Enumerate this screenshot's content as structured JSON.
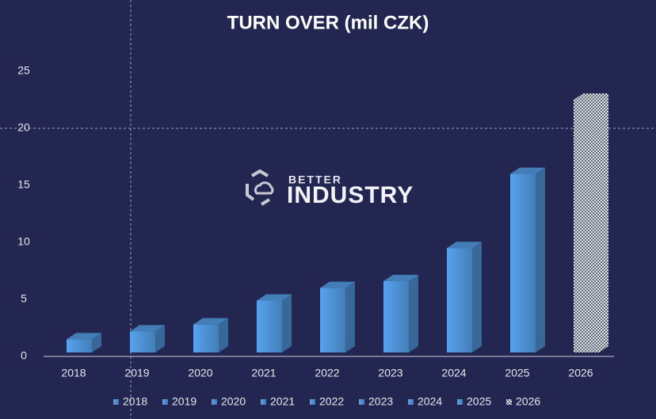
{
  "chart_data": {
    "type": "bar3d",
    "title": "TURN OVER (mil CZK)",
    "logo_text": [
      "BETTER",
      "INDUSTRY"
    ],
    "categories": [
      "2018",
      "2019",
      "2020",
      "2021",
      "2022",
      "2023",
      "2024",
      "2025",
      "2026"
    ],
    "values": [
      1.5,
      2.2,
      2.8,
      4.9,
      6.0,
      6.6,
      9.5,
      16.0,
      22.5
    ],
    "colors": [
      "#4f94d9",
      "#4f94d9",
      "#4f94d9",
      "#4f94d9",
      "#4f94d9",
      "#4f94d9",
      "#4f94d9",
      "#4f94d9",
      "#dbe6f2"
    ],
    "fills": [
      "solid",
      "solid",
      "solid",
      "solid",
      "solid",
      "solid",
      "solid",
      "solid",
      "dotted"
    ],
    "ylim": [
      0,
      25
    ],
    "yticks": [
      0,
      5,
      10,
      15,
      20,
      25
    ],
    "legend": "bottom"
  }
}
